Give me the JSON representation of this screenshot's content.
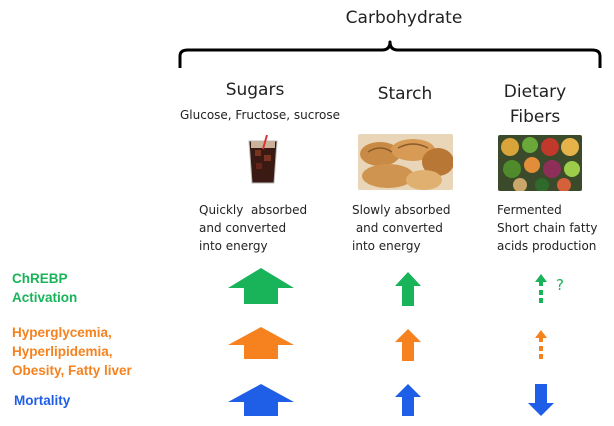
{
  "title": "Carbohydrate",
  "columns": [
    {
      "heading": "Sugars",
      "subheading": "Glucose, Fructose, sucrose",
      "image_icon": "cola-glass-icon",
      "description": [
        "Quickly  absorbed",
        "and converted",
        "into energy"
      ]
    },
    {
      "heading": "Starch",
      "subheading": "",
      "image_icon": "bread-icon",
      "description": [
        "Slowly absorbed",
        " and converted",
        "into energy"
      ]
    },
    {
      "heading": [
        "Dietary",
        "Fibers"
      ],
      "subheading": "",
      "image_icon": "vegetables-icon",
      "description": [
        "Fermented",
        "Short chain fatty",
        "acids production"
      ]
    }
  ],
  "rows": [
    {
      "label": [
        "ChREBP",
        "Activation"
      ],
      "color": "#19b35a",
      "effects": [
        "large-up",
        "medium-up",
        "small-dashed-up"
      ],
      "annotation": "?"
    },
    {
      "label": [
        "Hyperglycemia,",
        "Hyperlipidemia,",
        "Obesity, Fatty liver"
      ],
      "color": "#f5821f",
      "effects": [
        "large-up",
        "medium-up",
        "small-dashed-up"
      ]
    },
    {
      "label": [
        "Mortality"
      ],
      "color": "#1f5ee6",
      "effects": [
        "large-up",
        "medium-up",
        "medium-down"
      ]
    }
  ]
}
